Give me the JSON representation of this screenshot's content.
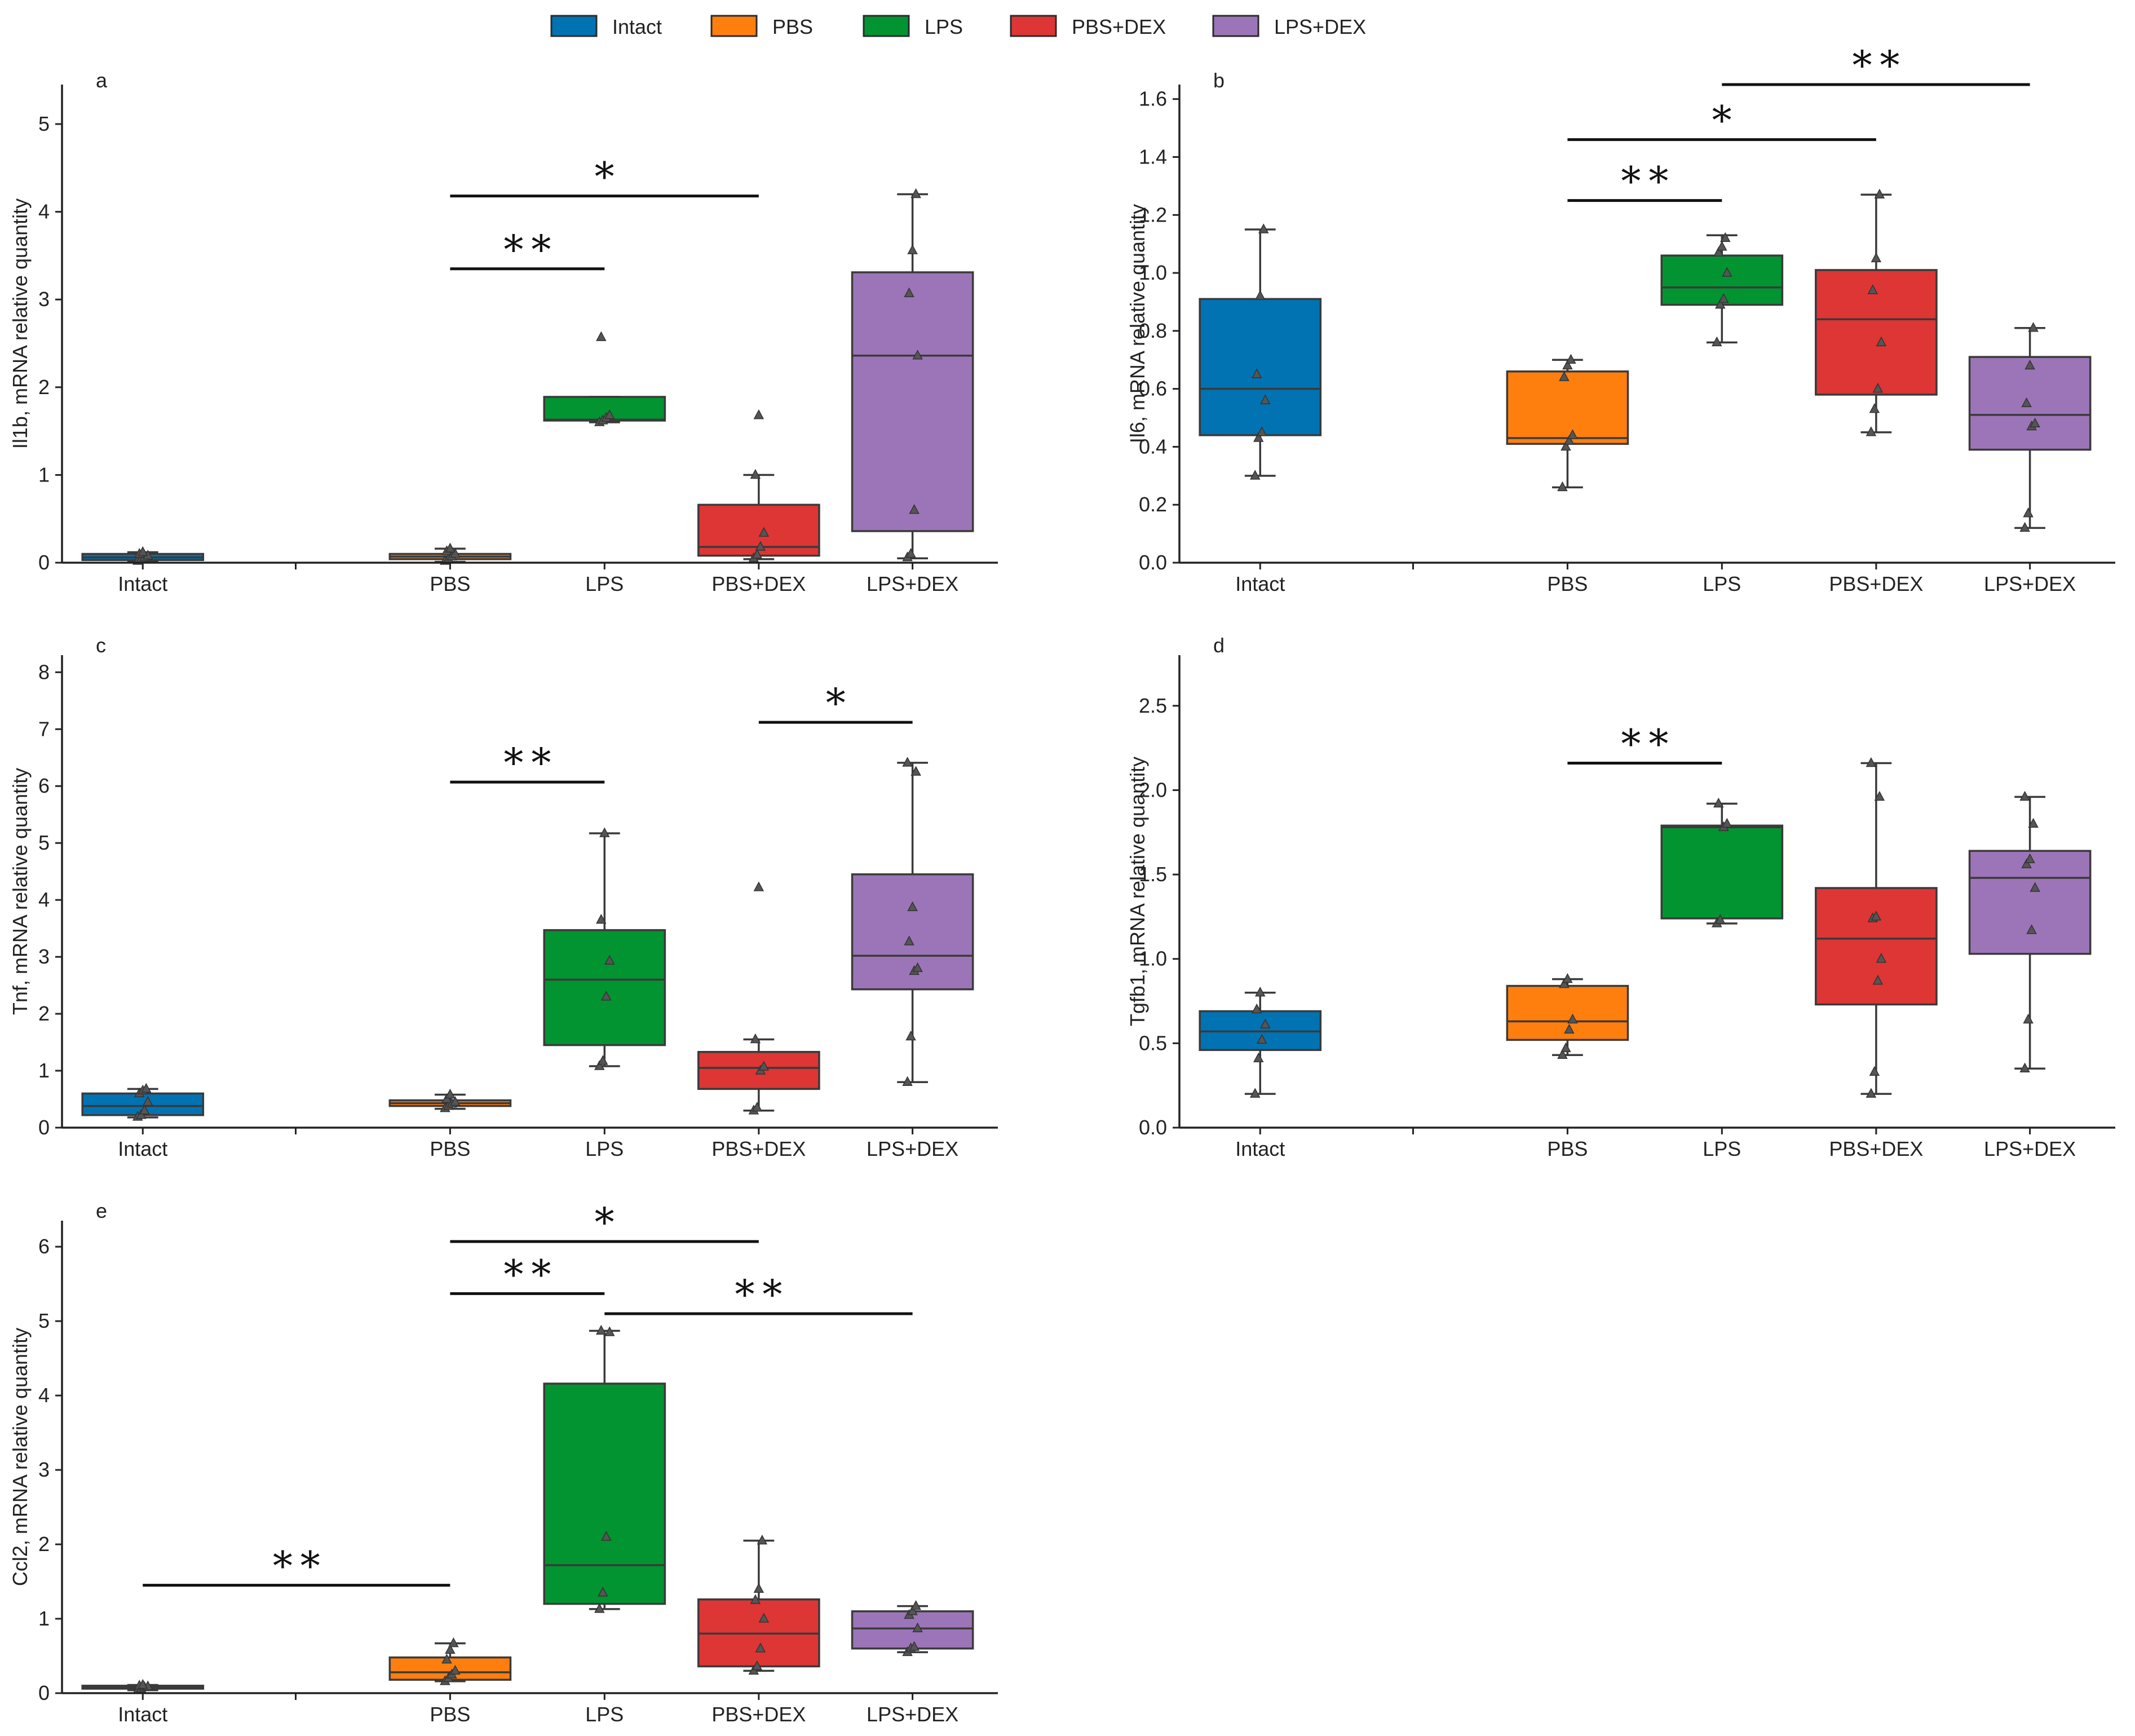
{
  "legend": {
    "items": [
      {
        "label": "Intact",
        "color": "#0173b2"
      },
      {
        "label": "PBS",
        "color": "#ff7f0e"
      },
      {
        "label": "LPS",
        "color": "#029431"
      },
      {
        "label": "PBS+DEX",
        "color": "#de3535"
      },
      {
        "label": "LPS+DEX",
        "color": "#9c75b8"
      }
    ]
  },
  "chart_data": [
    {
      "panel": "a",
      "type": "box",
      "ylabel": "Il1b, mRNA relative quantity",
      "xlabel": "",
      "ylim": [
        0,
        5.45
      ],
      "yticks": [
        "0",
        "1",
        "2",
        "3",
        "4",
        "5"
      ],
      "categories": [
        "Intact",
        "PBS",
        "LPS",
        "PBS+DEX",
        "LPS+DEX"
      ],
      "colors": [
        "#0173b2",
        "#ff7f0e",
        "#029431",
        "#de3535",
        "#9c75b8"
      ],
      "boxes": [
        {
          "group": "Intact",
          "q1": 0.03,
          "median": 0.06,
          "q3": 0.1,
          "whislo": 0.01,
          "whishi": 0.12,
          "points": [
            0.02,
            0.04,
            0.06,
            0.08,
            0.1,
            0.12
          ]
        },
        {
          "group": "PBS",
          "q1": 0.04,
          "median": 0.07,
          "q3": 0.1,
          "whislo": 0.01,
          "whishi": 0.16,
          "points": [
            0.02,
            0.04,
            0.07,
            0.1,
            0.13,
            0.16
          ]
        },
        {
          "group": "LPS",
          "q1": 1.62,
          "median": 1.63,
          "q3": 1.89,
          "whislo": 1.6,
          "whishi": 1.89,
          "points": [
            1.6,
            1.62,
            1.65,
            1.68,
            2.57
          ]
        },
        {
          "group": "PBS+DEX",
          "q1": 0.08,
          "median": 0.18,
          "q3": 0.66,
          "whislo": 0.04,
          "whishi": 1.0,
          "points": [
            0.05,
            0.09,
            0.18,
            0.34,
            1.0,
            1.68
          ]
        },
        {
          "group": "LPS+DEX",
          "q1": 0.36,
          "median": 2.36,
          "q3": 3.31,
          "whislo": 0.05,
          "whishi": 4.2,
          "points": [
            0.06,
            0.1,
            0.6,
            2.36,
            3.07,
            3.56,
            4.2
          ]
        }
      ],
      "significance": [
        {
          "from": "PBS",
          "to": "PBS+DEX",
          "y": 4.18,
          "label": "*"
        },
        {
          "from": "PBS",
          "to": "LPS",
          "y": 3.35,
          "label": "**"
        }
      ]
    },
    {
      "panel": "b",
      "type": "box",
      "ylabel": "Il6, mRNA relative quantity",
      "xlabel": "",
      "ylim": [
        0,
        1.65
      ],
      "yticks": [
        "0.0",
        "0.2",
        "0.4",
        "0.6",
        "0.8",
        "1.0",
        "1.2",
        "1.4",
        "1.6"
      ],
      "categories": [
        "Intact",
        "PBS",
        "LPS",
        "PBS+DEX",
        "LPS+DEX"
      ],
      "colors": [
        "#0173b2",
        "#ff7f0e",
        "#029431",
        "#de3535",
        "#9c75b8"
      ],
      "boxes": [
        {
          "group": "Intact",
          "q1": 0.44,
          "median": 0.6,
          "q3": 0.91,
          "whislo": 0.3,
          "whishi": 1.15,
          "points": [
            0.3,
            0.43,
            0.45,
            0.56,
            0.65,
            0.92,
            1.15
          ]
        },
        {
          "group": "PBS",
          "q1": 0.41,
          "median": 0.43,
          "q3": 0.66,
          "whislo": 0.26,
          "whishi": 0.7,
          "points": [
            0.26,
            0.4,
            0.42,
            0.44,
            0.64,
            0.68,
            0.7
          ]
        },
        {
          "group": "LPS",
          "q1": 0.89,
          "median": 0.95,
          "q3": 1.06,
          "whislo": 0.76,
          "whishi": 1.13,
          "points": [
            0.76,
            0.89,
            0.91,
            1.0,
            1.07,
            1.09,
            1.12
          ]
        },
        {
          "group": "PBS+DEX",
          "q1": 0.58,
          "median": 0.84,
          "q3": 1.01,
          "whislo": 0.45,
          "whishi": 1.27,
          "points": [
            0.45,
            0.53,
            0.6,
            0.76,
            0.94,
            1.05,
            1.27
          ]
        },
        {
          "group": "LPS+DEX",
          "q1": 0.39,
          "median": 0.51,
          "q3": 0.71,
          "whislo": 0.12,
          "whishi": 0.81,
          "points": [
            0.12,
            0.17,
            0.47,
            0.48,
            0.55,
            0.68,
            0.81
          ]
        }
      ],
      "significance": [
        {
          "from": "LPS",
          "to": "LPS+DEX",
          "y": 1.65,
          "label": "**"
        },
        {
          "from": "PBS",
          "to": "PBS+DEX",
          "y": 1.46,
          "label": "*"
        },
        {
          "from": "PBS",
          "to": "LPS",
          "y": 1.25,
          "label": "**"
        }
      ]
    },
    {
      "panel": "c",
      "type": "box",
      "ylabel": "Tnf, mRNA relative quantity",
      "xlabel": "",
      "ylim": [
        0,
        8.3
      ],
      "yticks": [
        "0",
        "1",
        "2",
        "3",
        "4",
        "5",
        "6",
        "7",
        "8"
      ],
      "categories": [
        "Intact",
        "PBS",
        "LPS",
        "PBS+DEX",
        "LPS+DEX"
      ],
      "colors": [
        "#0173b2",
        "#ff7f0e",
        "#029431",
        "#de3535",
        "#9c75b8"
      ],
      "boxes": [
        {
          "group": "Intact",
          "q1": 0.22,
          "median": 0.38,
          "q3": 0.6,
          "whislo": 0.18,
          "whishi": 0.68,
          "points": [
            0.19,
            0.22,
            0.3,
            0.45,
            0.6,
            0.65,
            0.68
          ]
        },
        {
          "group": "PBS",
          "q1": 0.38,
          "median": 0.43,
          "q3": 0.48,
          "whislo": 0.33,
          "whishi": 0.58,
          "points": [
            0.34,
            0.38,
            0.42,
            0.45,
            0.5,
            0.58
          ]
        },
        {
          "group": "LPS",
          "q1": 1.45,
          "median": 2.6,
          "q3": 3.47,
          "whislo": 1.08,
          "whishi": 5.17,
          "points": [
            1.08,
            1.17,
            2.3,
            2.93,
            3.65,
            5.17
          ]
        },
        {
          "group": "PBS+DEX",
          "q1": 0.68,
          "median": 1.05,
          "q3": 1.33,
          "whislo": 0.3,
          "whishi": 1.55,
          "points": [
            0.3,
            0.35,
            1.0,
            1.07,
            1.55,
            4.22
          ]
        },
        {
          "group": "LPS+DEX",
          "q1": 2.43,
          "median": 3.02,
          "q3": 4.45,
          "whislo": 0.8,
          "whishi": 6.41,
          "points": [
            0.8,
            1.6,
            2.75,
            2.8,
            3.27,
            3.87,
            6.25,
            6.41
          ]
        }
      ],
      "significance": [
        {
          "from": "PBS",
          "to": "LPS",
          "y": 6.07,
          "label": "**"
        },
        {
          "from": "PBS+DEX",
          "to": "LPS+DEX",
          "y": 7.12,
          "label": "*"
        }
      ]
    },
    {
      "panel": "d",
      "type": "box",
      "ylabel": "Tgfb1, mRNA relative quantity",
      "xlabel": "",
      "ylim": [
        0,
        2.8
      ],
      "yticks": [
        "0.0",
        "0.5",
        "1.0",
        "1.5",
        "2.0",
        "2.5"
      ],
      "categories": [
        "Intact",
        "PBS",
        "LPS",
        "PBS+DEX",
        "LPS+DEX"
      ],
      "colors": [
        "#0173b2",
        "#ff7f0e",
        "#029431",
        "#de3535",
        "#9c75b8"
      ],
      "boxes": [
        {
          "group": "Intact",
          "q1": 0.46,
          "median": 0.57,
          "q3": 0.69,
          "whislo": 0.2,
          "whishi": 0.8,
          "points": [
            0.2,
            0.41,
            0.52,
            0.61,
            0.7,
            0.8
          ]
        },
        {
          "group": "PBS",
          "q1": 0.52,
          "median": 0.63,
          "q3": 0.84,
          "whislo": 0.43,
          "whishi": 0.88,
          "points": [
            0.43,
            0.47,
            0.58,
            0.64,
            0.85,
            0.88
          ]
        },
        {
          "group": "LPS",
          "q1": 1.24,
          "median": 1.78,
          "q3": 1.79,
          "whislo": 1.21,
          "whishi": 1.92,
          "points": [
            1.21,
            1.23,
            1.78,
            1.8,
            1.92
          ]
        },
        {
          "group": "PBS+DEX",
          "q1": 0.73,
          "median": 1.12,
          "q3": 1.42,
          "whislo": 0.2,
          "whishi": 2.16,
          "points": [
            0.2,
            0.33,
            0.87,
            1.0,
            1.24,
            1.25,
            1.96,
            2.16
          ]
        },
        {
          "group": "LPS+DEX",
          "q1": 1.03,
          "median": 1.48,
          "q3": 1.64,
          "whislo": 0.35,
          "whishi": 1.96,
          "points": [
            0.35,
            0.64,
            1.17,
            1.42,
            1.56,
            1.59,
            1.8,
            1.96
          ]
        }
      ],
      "significance": [
        {
          "from": "PBS",
          "to": "LPS",
          "y": 2.16,
          "label": "**"
        }
      ]
    },
    {
      "panel": "e",
      "type": "box",
      "ylabel": "Ccl2, mRNA relative quantity",
      "xlabel": "",
      "ylim": [
        0,
        6.35
      ],
      "yticks": [
        "0",
        "1",
        "2",
        "3",
        "4",
        "5",
        "6"
      ],
      "categories": [
        "Intact",
        "PBS",
        "LPS",
        "PBS+DEX",
        "LPS+DEX"
      ],
      "colors": [
        "#0173b2",
        "#ff7f0e",
        "#029431",
        "#de3535",
        "#9c75b8"
      ],
      "boxes": [
        {
          "group": "Intact",
          "q1": 0.06,
          "median": 0.08,
          "q3": 0.1,
          "whislo": 0.04,
          "whishi": 0.11,
          "points": [
            0.04,
            0.06,
            0.08,
            0.09,
            0.1,
            0.11
          ]
        },
        {
          "group": "PBS",
          "q1": 0.18,
          "median": 0.28,
          "q3": 0.48,
          "whislo": 0.16,
          "whishi": 0.67,
          "points": [
            0.16,
            0.2,
            0.25,
            0.3,
            0.45,
            0.58,
            0.67
          ]
        },
        {
          "group": "LPS",
          "q1": 1.2,
          "median": 1.72,
          "q3": 4.16,
          "whislo": 1.13,
          "whishi": 4.87,
          "points": [
            1.13,
            1.35,
            2.1,
            4.85,
            4.87
          ]
        },
        {
          "group": "PBS+DEX",
          "q1": 0.36,
          "median": 0.8,
          "q3": 1.26,
          "whislo": 0.3,
          "whishi": 2.05,
          "points": [
            0.3,
            0.36,
            0.6,
            1.0,
            1.25,
            1.4,
            2.05
          ]
        },
        {
          "group": "LPS+DEX",
          "q1": 0.6,
          "median": 0.87,
          "q3": 1.1,
          "whislo": 0.55,
          "whishi": 1.17,
          "points": [
            0.55,
            0.6,
            0.62,
            0.87,
            1.05,
            1.1,
            1.17
          ]
        }
      ],
      "significance": [
        {
          "from": "PBS",
          "to": "PBS+DEX",
          "y": 6.07,
          "label": "*"
        },
        {
          "from": "PBS",
          "to": "LPS",
          "y": 5.37,
          "label": "**"
        },
        {
          "from": "LPS",
          "to": "LPS+DEX",
          "y": 5.1,
          "label": "**"
        },
        {
          "from": "Intact",
          "to": "PBS",
          "y": 1.45,
          "label": "**"
        }
      ]
    }
  ]
}
